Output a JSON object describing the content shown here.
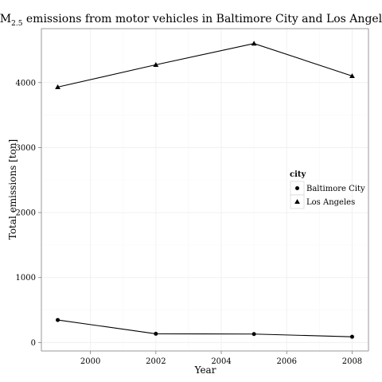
{
  "chart_data": {
    "type": "line",
    "title_main": "PM",
    "title_sub": "2.5",
    "title_rest": " emissions from motor vehicles in Baltimore City and Los Angeles",
    "xlabel": "Year",
    "ylabel": "Total emissions [ton]",
    "x": [
      1999,
      2002,
      2005,
      2008
    ],
    "xlim": [
      1998.5,
      2008.5
    ],
    "ylim": [
      -130,
      4830
    ],
    "xticks": [
      2000,
      2002,
      2004,
      2006,
      2008
    ],
    "yticks": [
      0,
      1000,
      2000,
      3000,
      4000
    ],
    "grid": true,
    "legend": {
      "title": "city",
      "placement": "right"
    },
    "series": [
      {
        "name": "Baltimore City",
        "marker": "circle",
        "values": [
          346.8,
          134.3,
          130.4,
          88.3
        ]
      },
      {
        "name": "Los Angeles",
        "marker": "triangle",
        "values": [
          3931.1,
          4274.0,
          4601.4,
          4101.3
        ]
      }
    ]
  },
  "colors": {
    "line": "#000000",
    "panel_border": "#808080",
    "grid_major": "#f0f0f0",
    "grid_minor": "#f9f9f9"
  }
}
